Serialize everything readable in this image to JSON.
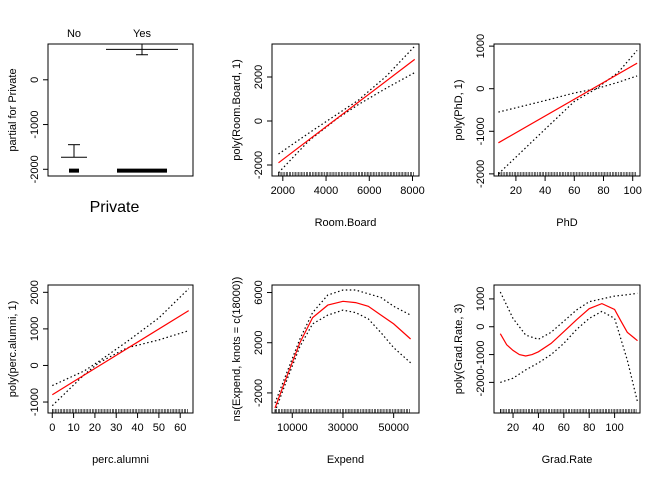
{
  "chart_data": [
    {
      "type": "box",
      "title": "",
      "xlabel": "Private",
      "ylabel": "partial for Private",
      "categories": [
        "No",
        "Yes"
      ],
      "ylim": [
        -2150,
        800
      ],
      "yticks": [
        -2000,
        -1000,
        0
      ],
      "boxes": [
        {
          "name": "No",
          "center": -1730,
          "whisker_upper": -1450
        },
        {
          "name": "Yes",
          "center": 680,
          "whisker_lower": 560,
          "whisker_upper": 800
        }
      ],
      "rug_level": -2030
    },
    {
      "type": "line",
      "xlabel": "Room.Board",
      "ylabel": "poly(Room.Board, 1)",
      "xlim": [
        1500,
        8300
      ],
      "ylim": [
        -2500,
        3500
      ],
      "xticks": [
        2000,
        4000,
        6000,
        8000
      ],
      "yticks": [
        -2000,
        0,
        2000
      ],
      "fit": {
        "x": [
          1800,
          8100
        ],
        "y": [
          -1900,
          2800
        ]
      },
      "band_upper": {
        "x": [
          1800,
          3200,
          4500,
          5500,
          6800,
          8100
        ],
        "y": [
          -1500,
          -550,
          300,
          950,
          2050,
          3400
        ]
      },
      "band_lower": {
        "x": [
          1800,
          3200,
          4500,
          5500,
          6800,
          8100
        ],
        "y": [
          -2350,
          -900,
          100,
          750,
          1500,
          2200
        ]
      }
    },
    {
      "type": "line",
      "xlabel": "PhD",
      "ylabel": "poly(PhD, 1)",
      "xlim": [
        5,
        105
      ],
      "ylim": [
        -2050,
        1050
      ],
      "xticks": [
        20,
        40,
        60,
        80,
        100
      ],
      "yticks": [
        -2000,
        -1000,
        0,
        1000
      ],
      "fit": {
        "x": [
          8,
          103
        ],
        "y": [
          -1270,
          600
        ]
      },
      "band_upper": {
        "x": [
          8,
          40,
          60,
          75,
          90,
          103
        ],
        "y": [
          -550,
          -280,
          -100,
          0,
          380,
          900
        ]
      },
      "band_lower": {
        "x": [
          8,
          40,
          60,
          75,
          90,
          103
        ],
        "y": [
          -2000,
          -950,
          -300,
          0,
          150,
          300
        ]
      }
    },
    {
      "type": "line",
      "xlabel": "perc.alumni",
      "ylabel": "poly(perc.alumni, 1)",
      "xlim": [
        -2,
        66
      ],
      "ylim": [
        -1300,
        2200
      ],
      "xticks": [
        0,
        10,
        20,
        30,
        40,
        50,
        60
      ],
      "yticks": [
        -1000,
        0,
        1000,
        2000
      ],
      "fit": {
        "x": [
          0,
          64
        ],
        "y": [
          -800,
          1500
        ]
      },
      "band_upper": {
        "x": [
          0,
          15,
          22,
          35,
          50,
          64
        ],
        "y": [
          -550,
          -150,
          120,
          650,
          1300,
          2100
        ]
      },
      "band_lower": {
        "x": [
          0,
          15,
          22,
          35,
          50,
          64
        ],
        "y": [
          -1100,
          -250,
          80,
          480,
          700,
          950
        ]
      }
    },
    {
      "type": "line",
      "xlabel": "Expend",
      "ylabel": "ns(Expend, knots = c(18000))",
      "xlim": [
        2000,
        60000
      ],
      "ylim": [
        -3600,
        6600
      ],
      "xticks": [
        10000,
        30000,
        50000
      ],
      "yticks": [
        -2000,
        2000,
        6000
      ],
      "fit": {
        "x": [
          3200,
          8000,
          13000,
          18000,
          24000,
          30000,
          35000,
          40000,
          45000,
          50000,
          56700
        ],
        "y": [
          -3200,
          -600,
          2000,
          4000,
          5000,
          5300,
          5200,
          4900,
          4200,
          3500,
          2300
        ]
      },
      "band_upper": {
        "x": [
          3200,
          8000,
          13000,
          18000,
          24000,
          30000,
          35000,
          40000,
          45000,
          50000,
          56700
        ],
        "y": [
          -2800,
          -300,
          2300,
          4400,
          5800,
          6200,
          6200,
          5900,
          5600,
          4900,
          4200
        ]
      },
      "band_lower": {
        "x": [
          3200,
          8000,
          13000,
          18000,
          24000,
          30000,
          35000,
          40000,
          45000,
          50000,
          56700
        ],
        "y": [
          -3500,
          -900,
          1700,
          3500,
          4200,
          4600,
          4400,
          3900,
          2800,
          1600,
          400
        ]
      }
    },
    {
      "type": "line",
      "xlabel": "Grad.Rate",
      "ylabel": "poly(Grad.Rate, 3)",
      "xlim": [
        5,
        120
      ],
      "ylim": [
        -3100,
        1500
      ],
      "xticks": [
        20,
        40,
        60,
        80,
        100
      ],
      "yticks": [
        -2000,
        -1000,
        0,
        1000
      ],
      "fit": {
        "x": [
          10,
          15,
          20,
          25,
          30,
          35,
          40,
          50,
          60,
          70,
          80,
          90,
          100,
          105,
          110,
          118
        ],
        "y": [
          -250,
          -650,
          -850,
          -1000,
          -1050,
          -1000,
          -900,
          -600,
          -180,
          250,
          650,
          830,
          620,
          200,
          -200,
          -500
        ]
      },
      "band_upper": {
        "x": [
          10,
          20,
          30,
          40,
          50,
          60,
          70,
          80,
          90,
          100,
          110,
          118
        ],
        "y": [
          1250,
          300,
          -300,
          -450,
          -200,
          200,
          600,
          900,
          1000,
          1100,
          1150,
          1200
        ]
      },
      "band_lower": {
        "x": [
          10,
          20,
          30,
          40,
          50,
          60,
          70,
          80,
          90,
          100,
          110,
          118
        ],
        "y": [
          -2000,
          -1850,
          -1550,
          -1300,
          -1000,
          -600,
          -100,
          300,
          550,
          300,
          -1200,
          -2700
        ]
      }
    }
  ]
}
